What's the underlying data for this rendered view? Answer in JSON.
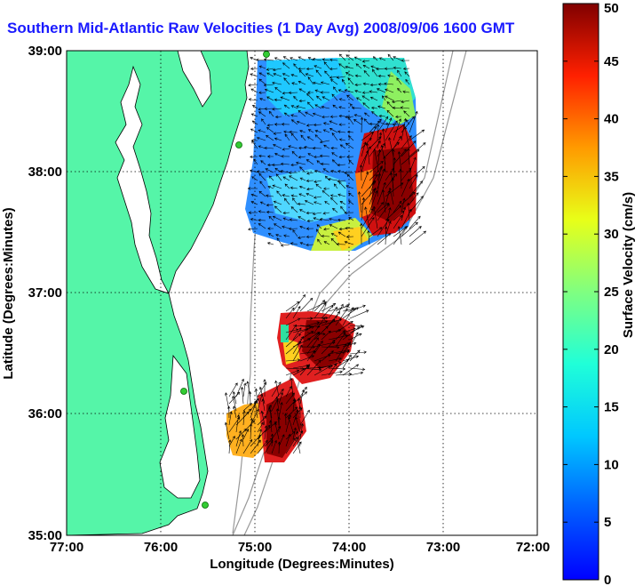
{
  "title": "Southern Mid-Atlantic Raw Velocities (1 Day Avg) 2008/09/06 1600 GMT",
  "x_axis": {
    "label": "Longitude (Degrees:Minutes)",
    "ticks": [
      "77:00",
      "76:00",
      "75:00",
      "74:00",
      "73:00",
      "72:00"
    ]
  },
  "y_axis": {
    "label": "Latitude (Degrees:Minutes)",
    "ticks": [
      "39:00",
      "38:00",
      "37:00",
      "36:00",
      "35:00"
    ]
  },
  "colorbar": {
    "label": "Surface Velocity (cm/s)",
    "ticks": [
      "50",
      "45",
      "40",
      "35",
      "30",
      "25",
      "20",
      "15",
      "10",
      "5",
      "0"
    ],
    "min": 0,
    "max": 50,
    "colormap": "jet"
  },
  "map": {
    "lon_range": [
      -77,
      -72
    ],
    "lat_range": [
      35,
      39
    ],
    "grid": true,
    "land_color": "#55f5a8",
    "station_color": "#33cc33"
  }
}
